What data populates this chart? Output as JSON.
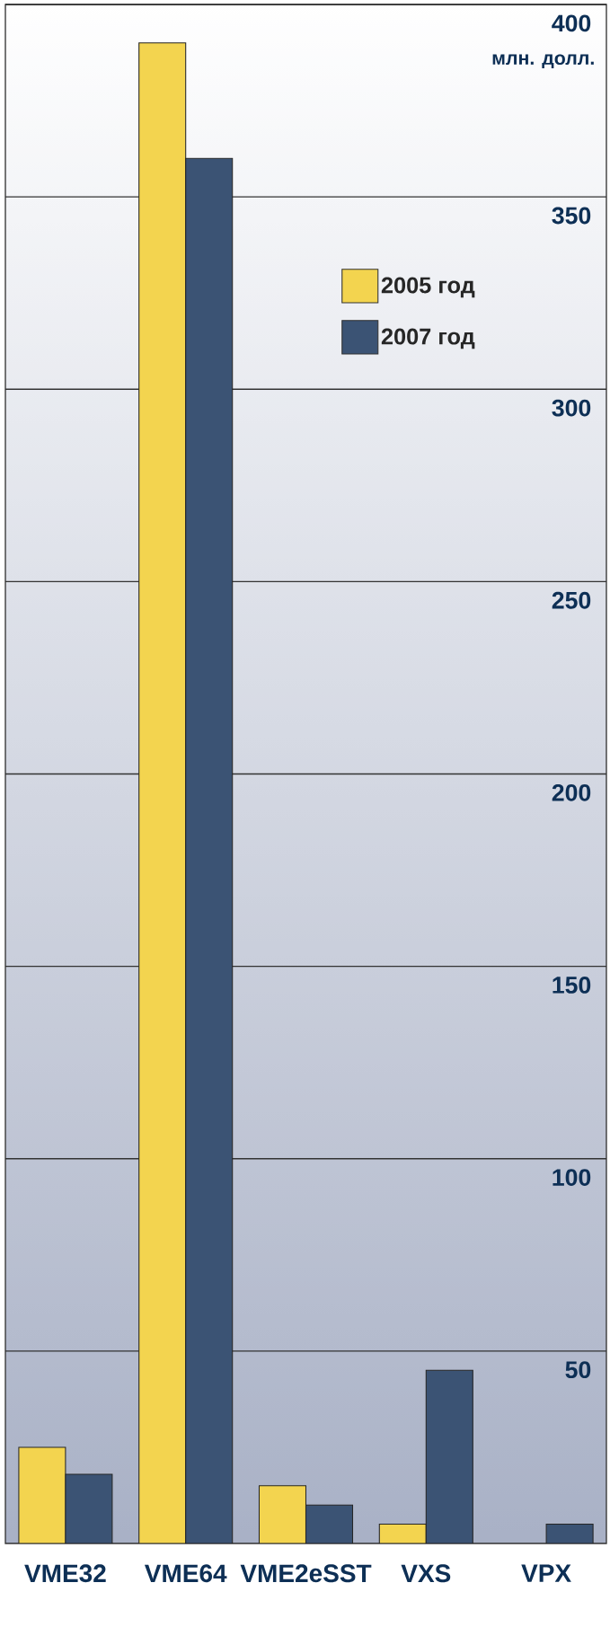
{
  "chart_data": {
    "type": "bar",
    "ylabel": "млн. долл.",
    "categories": [
      "VME32",
      "VME64",
      "VME2eSST",
      "VXS",
      "VPX"
    ],
    "series": [
      {
        "name": "2005 год",
        "color": "#f3d44f",
        "values": [
          25,
          390,
          15,
          5,
          null
        ]
      },
      {
        "name": "2007 год",
        "color": "#3b5374",
        "values": [
          18,
          360,
          10,
          45,
          5
        ]
      }
    ],
    "ylim": [
      0,
      400
    ],
    "yticks": [
      50,
      100,
      150,
      200,
      250,
      300,
      350,
      400
    ],
    "grid": "y",
    "legend": "top right"
  }
}
